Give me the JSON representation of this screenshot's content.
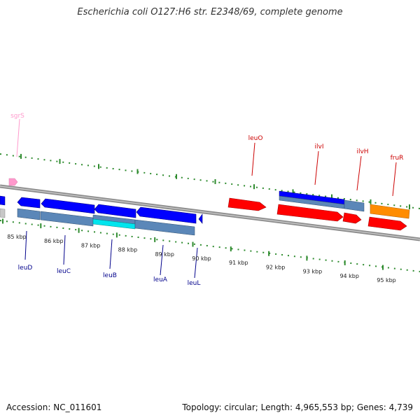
{
  "title": "Escherichia coli O127:H6 str. E2348/69, complete genome",
  "footer": {
    "accession": "Accession: NC_011601",
    "summary": "Topology: circular; Length: 4,965,553 bp; Genes: 4,739"
  },
  "colors": {
    "backbone": "#8c8c8c",
    "tick": "#2e8b2e",
    "forward_gene": "#ff0000",
    "reverse_gene": "#0000ff",
    "cds_block": "#5b87b8",
    "highlight_cds": "#00e5ee",
    "rna_gene": "#ff8c00",
    "small_rna": "#ff99cc",
    "forward_label": "#cc0000",
    "reverse_label": "#00008b",
    "rna_label": "#ff99cc"
  },
  "scale": {
    "labels": [
      "85 kbp",
      "86 kbp",
      "87 kbp",
      "88 kbp",
      "89 kbp",
      "90 kbp",
      "91 kbp",
      "92 kbp",
      "93 kbp",
      "94 kbp",
      "95 kbp"
    ]
  },
  "genes": [
    {
      "name": "sgrS",
      "strand": "forward",
      "type": "small-rna",
      "icon": "pentagon-arrow-right"
    },
    {
      "name": "leuO",
      "strand": "forward",
      "type": "gene",
      "icon": "arrow-right"
    },
    {
      "name": "ilvI",
      "strand": "forward",
      "type": "gene",
      "icon": "arrow-right"
    },
    {
      "name": "ilvH",
      "strand": "forward",
      "type": "gene",
      "icon": "arrow-right"
    },
    {
      "name": "fruR",
      "strand": "forward",
      "type": "gene",
      "icon": "arrow-right"
    },
    {
      "name": "leuD",
      "strand": "reverse",
      "type": "gene",
      "icon": "arrow-left"
    },
    {
      "name": "leuC",
      "strand": "reverse",
      "type": "gene",
      "icon": "arrow-left"
    },
    {
      "name": "leuB",
      "strand": "reverse",
      "type": "gene",
      "icon": "arrow-left"
    },
    {
      "name": "leuA",
      "strand": "reverse",
      "type": "gene",
      "icon": "arrow-left"
    },
    {
      "name": "leuL",
      "strand": "reverse",
      "type": "gene",
      "icon": "arrow-left"
    }
  ]
}
